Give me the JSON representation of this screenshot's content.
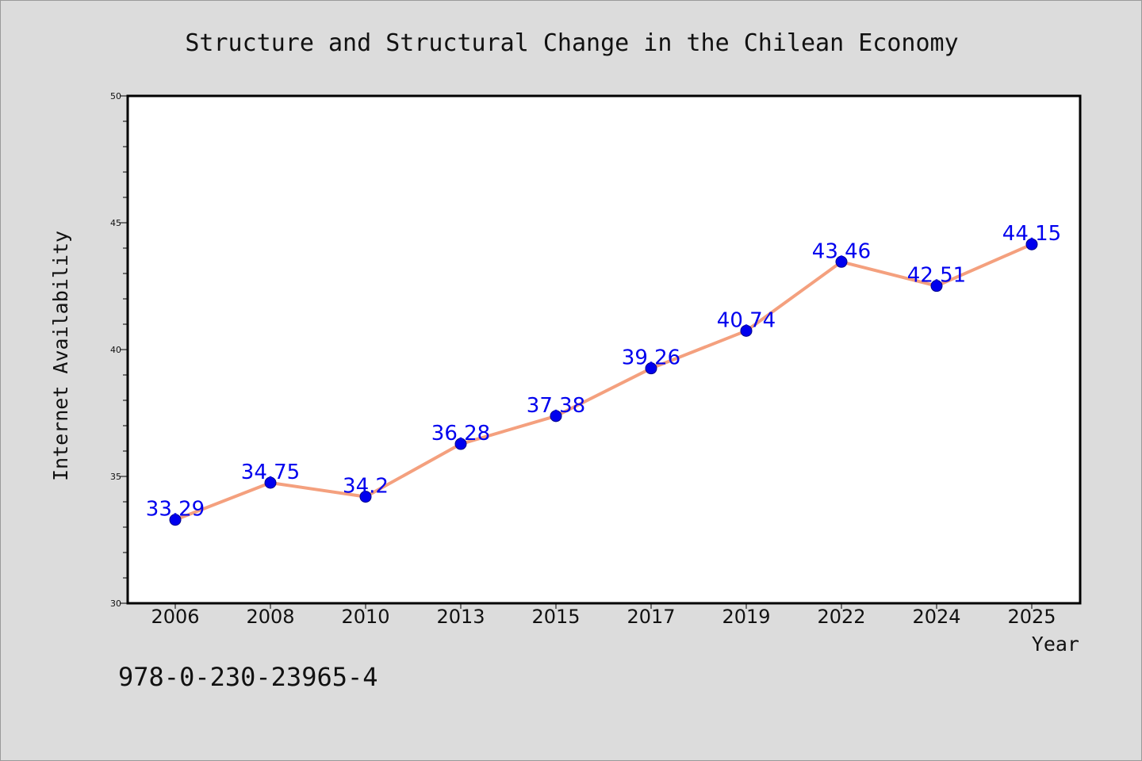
{
  "chart_data": {
    "type": "line",
    "title": "Structure and Structural Change in the Chilean Economy",
    "xlabel": "Year",
    "ylabel": "Internet Availability",
    "categories": [
      "2006",
      "2008",
      "2010",
      "2013",
      "2015",
      "2017",
      "2019",
      "2022",
      "2024",
      "2025"
    ],
    "series": [
      {
        "values": [
          33.29,
          34.75,
          34.2,
          36.28,
          37.38,
          39.26,
          40.74,
          43.46,
          42.51,
          44.15
        ],
        "line_color": "#f4a07e",
        "marker_color": "#0000ee",
        "label_color": "#0000ee"
      }
    ],
    "data_labels": [
      "33.29",
      "34.75",
      "34.2",
      "36.28",
      "37.38",
      "39.26",
      "40.74",
      "43.46",
      "42.51",
      "44.15"
    ],
    "ylim": [
      30,
      50
    ],
    "yticks": [
      "30",
      "35",
      "40",
      "45",
      "50"
    ],
    "grid": false,
    "legend": "none"
  },
  "annotation": {
    "isbn": "978-0-230-23965-4"
  }
}
